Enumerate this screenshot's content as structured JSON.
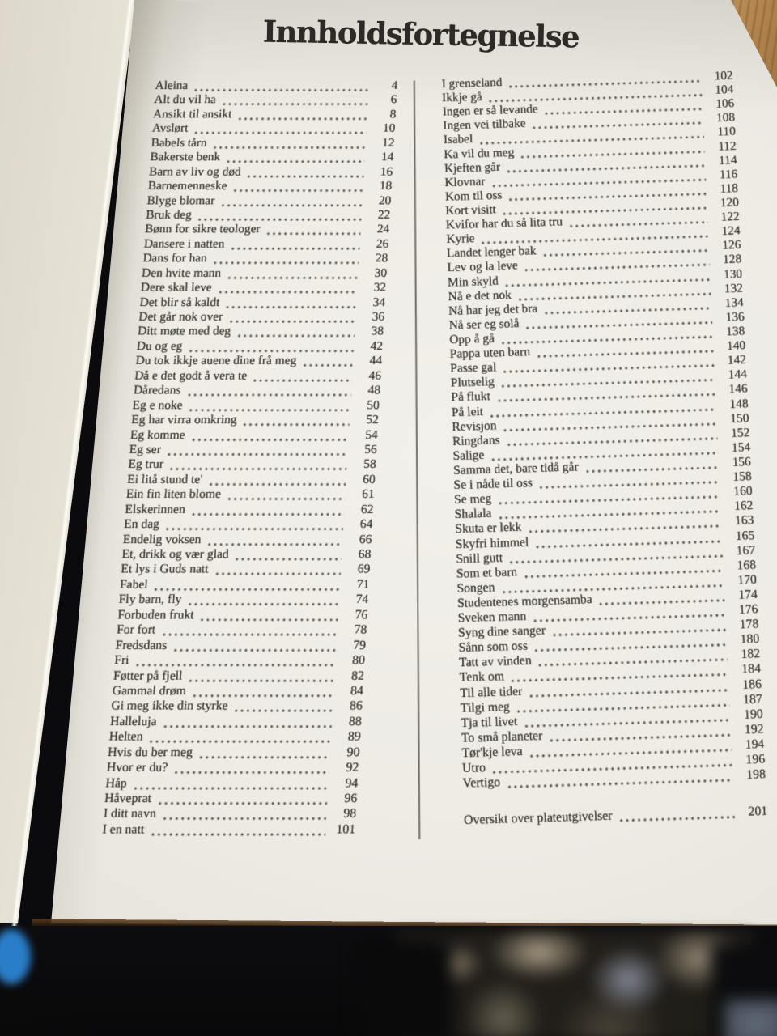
{
  "page": {
    "title": "Innholdsfortegnelse"
  },
  "toc": {
    "left": [
      {
        "title": "Aleina",
        "page": "4"
      },
      {
        "title": "Alt du vil ha",
        "page": "6"
      },
      {
        "title": "Ansikt til ansikt",
        "page": "8"
      },
      {
        "title": "Avslørt",
        "page": "10"
      },
      {
        "title": "Babels tårn",
        "page": "12"
      },
      {
        "title": "Bakerste benk",
        "page": "14"
      },
      {
        "title": "Barn av liv og død",
        "page": "16"
      },
      {
        "title": "Barnemenneske",
        "page": "18"
      },
      {
        "title": "Blyge blomar",
        "page": "20"
      },
      {
        "title": "Bruk deg",
        "page": "22"
      },
      {
        "title": "Bønn for sikre teologer",
        "page": "24"
      },
      {
        "title": "Dansere i natten",
        "page": "26"
      },
      {
        "title": "Dans for han",
        "page": "28"
      },
      {
        "title": "Den hvite mann",
        "page": "30"
      },
      {
        "title": "Dere skal leve",
        "page": "32"
      },
      {
        "title": "Det blir så kaldt",
        "page": "34"
      },
      {
        "title": "Det går nok over",
        "page": "36"
      },
      {
        "title": "Ditt møte med deg",
        "page": "38"
      },
      {
        "title": "Du og eg",
        "page": "42"
      },
      {
        "title": "Du tok ikkje auene dine frå meg",
        "page": "44"
      },
      {
        "title": "Då e det godt å vera te",
        "page": "46"
      },
      {
        "title": "Dåredans",
        "page": "48"
      },
      {
        "title": "Eg e noke",
        "page": "50"
      },
      {
        "title": "Eg har virra omkring",
        "page": "52"
      },
      {
        "title": "Eg komme",
        "page": "54"
      },
      {
        "title": "Eg ser",
        "page": "56"
      },
      {
        "title": "Eg trur",
        "page": "58"
      },
      {
        "title": "Ei litå stund te'",
        "page": "60"
      },
      {
        "title": "Ein fin liten blome",
        "page": "61"
      },
      {
        "title": "Elskerinnen",
        "page": "62"
      },
      {
        "title": "En dag",
        "page": "64"
      },
      {
        "title": "Endelig voksen",
        "page": "66"
      },
      {
        "title": "Et, drikk og vær glad",
        "page": "68"
      },
      {
        "title": "Et lys i Guds natt",
        "page": "69"
      },
      {
        "title": "Fabel",
        "page": "71"
      },
      {
        "title": "Fly barn, fly",
        "page": "74"
      },
      {
        "title": "Forbuden frukt",
        "page": "76"
      },
      {
        "title": "For fort",
        "page": "78"
      },
      {
        "title": "Fredsdans",
        "page": "79"
      },
      {
        "title": "Fri",
        "page": "80"
      },
      {
        "title": "Føtter på fjell",
        "page": "82"
      },
      {
        "title": "Gammal drøm",
        "page": "84"
      },
      {
        "title": "Gi meg ikke din styrke",
        "page": "86"
      },
      {
        "title": "Halleluja",
        "page": "88"
      },
      {
        "title": "Helten",
        "page": "89"
      },
      {
        "title": "Hvis du ber meg",
        "page": "90"
      },
      {
        "title": "Hvor er du?",
        "page": "92"
      },
      {
        "title": "Håp",
        "page": "94"
      },
      {
        "title": "Håveprat",
        "page": "96"
      },
      {
        "title": "I ditt navn",
        "page": "98"
      },
      {
        "title": "I en natt",
        "page": "101"
      }
    ],
    "right": [
      {
        "title": "I grenseland",
        "page": "102"
      },
      {
        "title": "Ikkje gå",
        "page": "104"
      },
      {
        "title": "Ingen er så levande",
        "page": "106"
      },
      {
        "title": "Ingen vei tilbake",
        "page": "108"
      },
      {
        "title": "Isabel",
        "page": "110"
      },
      {
        "title": "Ka vil du meg",
        "page": "112"
      },
      {
        "title": "Kjeften går",
        "page": "114"
      },
      {
        "title": "Klovnar",
        "page": "116"
      },
      {
        "title": "Kom til oss",
        "page": "118"
      },
      {
        "title": "Kort visitt",
        "page": "120"
      },
      {
        "title": "Kvifor har du så lita tru",
        "page": "122"
      },
      {
        "title": "Kyrie",
        "page": "124"
      },
      {
        "title": "Landet lenger bak",
        "page": "126"
      },
      {
        "title": "Lev og la leve",
        "page": "128"
      },
      {
        "title": "Min skyld",
        "page": "130"
      },
      {
        "title": "Nå e det nok",
        "page": "132"
      },
      {
        "title": "Nå har jeg det bra",
        "page": "134"
      },
      {
        "title": "Nå ser eg solå",
        "page": "136"
      },
      {
        "title": "Opp å gå",
        "page": "138"
      },
      {
        "title": "Pappa uten barn",
        "page": "140"
      },
      {
        "title": "Passe gal",
        "page": "142"
      },
      {
        "title": "Plutselig",
        "page": "144"
      },
      {
        "title": "På flukt",
        "page": "146"
      },
      {
        "title": "På leit",
        "page": "148"
      },
      {
        "title": "Revisjon",
        "page": "150"
      },
      {
        "title": "Ringdans",
        "page": "152"
      },
      {
        "title": "Salige",
        "page": "154"
      },
      {
        "title": "Samma det, bare tidå går",
        "page": "156"
      },
      {
        "title": "Se i nåde til oss",
        "page": "158"
      },
      {
        "title": "Se meg",
        "page": "160"
      },
      {
        "title": "Shalala",
        "page": "162"
      },
      {
        "title": "Skuta er lekk",
        "page": "163"
      },
      {
        "title": "Skyfri himmel",
        "page": "165"
      },
      {
        "title": "Snill gutt",
        "page": "167"
      },
      {
        "title": "Som et barn",
        "page": "168"
      },
      {
        "title": "Songen",
        "page": "170"
      },
      {
        "title": "Studentenes morgensamba",
        "page": "174"
      },
      {
        "title": "Sveken mann",
        "page": "176"
      },
      {
        "title": "Syng dine sanger",
        "page": "178"
      },
      {
        "title": "Sånn som oss",
        "page": "180"
      },
      {
        "title": "Tatt av vinden",
        "page": "182"
      },
      {
        "title": "Tenk om",
        "page": "184"
      },
      {
        "title": "Til alle tider",
        "page": "186"
      },
      {
        "title": "Tilgi meg",
        "page": "187"
      },
      {
        "title": "Tja til livet",
        "page": "190"
      },
      {
        "title": "To små planeter",
        "page": "192"
      },
      {
        "title": "Tør'kje leva",
        "page": "194"
      },
      {
        "title": "Utro",
        "page": "196"
      },
      {
        "title": "Vertigo",
        "page": "198"
      }
    ],
    "footer": {
      "title": "Oversikt over plateutgivelser",
      "page": "201"
    }
  },
  "colors": {
    "page": "#efede7",
    "text": "#38342d",
    "wood": "#b3854f",
    "fabric": "#0b0b0d",
    "blue_book_edge": "#2a7ec9"
  }
}
